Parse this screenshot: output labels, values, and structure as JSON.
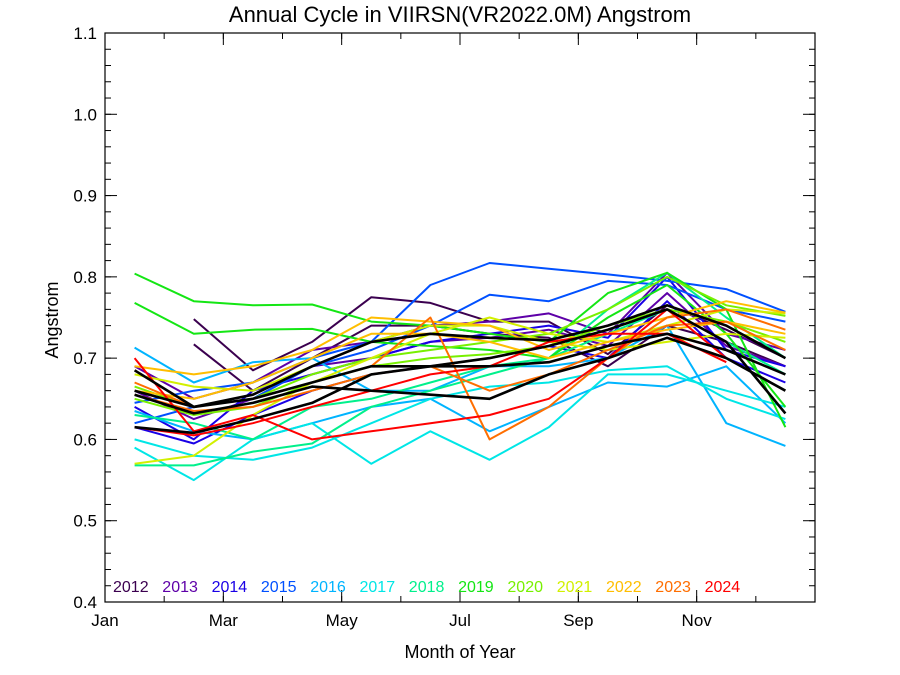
{
  "chart_data": {
    "type": "line",
    "title": "Annual Cycle in VIIRSN(VR2022.0M) Angstrom",
    "xlabel": "Month of Year",
    "ylabel": "Angstrom",
    "xlim": [
      1,
      13
    ],
    "ylim": [
      0.4,
      1.1
    ],
    "x_ticks": [
      {
        "value": 1,
        "label": "Jan"
      },
      {
        "value": 3,
        "label": "Mar"
      },
      {
        "value": 5,
        "label": "May"
      },
      {
        "value": 7,
        "label": "Jul"
      },
      {
        "value": 9,
        "label": "Sep"
      },
      {
        "value": 11,
        "label": "Nov"
      }
    ],
    "y_ticks": [
      {
        "value": 0.4,
        "label": "0.4"
      },
      {
        "value": 0.5,
        "label": "0.5"
      },
      {
        "value": 0.6,
        "label": "0.6"
      },
      {
        "value": 0.7,
        "label": "0.7"
      },
      {
        "value": 0.8,
        "label": "0.8"
      },
      {
        "value": 0.9,
        "label": "0.9"
      },
      {
        "value": 1.0,
        "label": "1.0"
      },
      {
        "value": 1.1,
        "label": "1.1"
      }
    ],
    "legend_placement": "bottom-left inside plot",
    "months": [
      1.5,
      2.5,
      3.5,
      4.5,
      5.5,
      6.5,
      7.5,
      8.5,
      9.5,
      10.5,
      11.5,
      12.5
    ],
    "series": [
      {
        "name": "2012",
        "color": "#3b004f",
        "lines": [
          [
            null,
            0.748,
            0.685,
            0.72,
            0.775,
            0.768,
            0.745,
            0.745,
            0.705,
            0.765,
            0.735,
            0.7
          ],
          [
            null,
            0.717,
            0.66,
            0.7,
            0.74,
            0.74,
            0.73,
            0.725,
            0.69,
            0.74,
            0.72,
            0.69
          ]
        ]
      },
      {
        "name": "2013",
        "color": "#5e00a8",
        "lines": [
          [
            0.69,
            0.65,
            0.67,
            0.71,
            0.72,
            0.74,
            0.745,
            0.755,
            0.73,
            0.805,
            0.73,
            0.71
          ],
          [
            0.66,
            0.625,
            0.65,
            0.69,
            0.7,
            0.72,
            0.725,
            0.735,
            0.715,
            0.78,
            0.715,
            0.69
          ]
        ]
      },
      {
        "name": "2014",
        "color": "#1a00e6",
        "lines": [
          [
            0.64,
            0.6,
            0.66,
            0.68,
            0.7,
            0.72,
            0.73,
            0.74,
            0.725,
            0.8,
            0.71,
            0.69
          ],
          [
            0.615,
            0.595,
            0.63,
            0.66,
            0.68,
            0.69,
            0.7,
            0.715,
            0.7,
            0.77,
            0.7,
            0.67
          ]
        ]
      },
      {
        "name": "2015",
        "color": "#0050ff",
        "lines": [
          [
            0.645,
            0.66,
            0.67,
            0.7,
            0.72,
            0.79,
            0.817,
            0.81,
            0.803,
            0.795,
            0.785,
            0.757
          ],
          [
            0.62,
            0.64,
            0.65,
            0.69,
            0.71,
            0.74,
            0.778,
            0.77,
            0.795,
            0.79,
            0.76,
            0.745
          ]
        ]
      },
      {
        "name": "2016",
        "color": "#00b4ff",
        "lines": [
          [
            0.713,
            0.67,
            0.695,
            0.7,
            0.66,
            0.66,
            0.69,
            0.69,
            0.7,
            0.74,
            0.62,
            0.592
          ],
          [
            0.635,
            0.61,
            0.6,
            0.62,
            0.64,
            0.65,
            0.61,
            0.64,
            0.67,
            0.665,
            0.69,
            0.62
          ]
        ]
      },
      {
        "name": "2017",
        "color": "#00e6e6",
        "lines": [
          [
            0.59,
            0.55,
            0.6,
            0.62,
            0.57,
            0.61,
            0.575,
            0.615,
            0.68,
            0.68,
            0.66,
            0.64
          ],
          [
            0.6,
            0.58,
            0.575,
            0.59,
            0.62,
            0.65,
            0.665,
            0.67,
            0.685,
            0.69,
            0.65,
            0.625
          ]
        ]
      },
      {
        "name": "2018",
        "color": "#00f08c",
        "lines": [
          [
            0.63,
            0.62,
            0.6,
            0.64,
            0.65,
            0.67,
            0.69,
            0.7,
            0.76,
            0.805,
            0.75,
            0.7
          ],
          [
            0.568,
            0.568,
            0.585,
            0.595,
            0.64,
            0.66,
            0.68,
            0.7,
            0.73,
            0.76,
            0.72,
            0.68
          ]
        ]
      },
      {
        "name": "2019",
        "color": "#14e614",
        "lines": [
          [
            0.804,
            0.77,
            0.765,
            0.766,
            0.745,
            0.74,
            0.73,
            0.72,
            0.78,
            0.805,
            0.76,
            0.615
          ],
          [
            0.768,
            0.73,
            0.735,
            0.736,
            0.72,
            0.715,
            0.71,
            0.7,
            0.75,
            0.79,
            0.73,
            0.64
          ]
        ]
      },
      {
        "name": "2020",
        "color": "#78f000",
        "lines": [
          [
            0.665,
            0.64,
            0.65,
            0.68,
            0.7,
            0.71,
            0.72,
            0.73,
            0.76,
            0.8,
            0.765,
            0.752
          ],
          [
            0.65,
            0.63,
            0.64,
            0.67,
            0.69,
            0.7,
            0.705,
            0.715,
            0.74,
            0.76,
            0.745,
            0.72
          ]
        ]
      },
      {
        "name": "2021",
        "color": "#d2f000",
        "lines": [
          [
            0.57,
            0.58,
            0.63,
            0.67,
            0.7,
            0.73,
            0.75,
            0.73,
            0.72,
            0.74,
            0.76,
            0.755
          ],
          [
            0.68,
            0.665,
            0.66,
            0.69,
            0.72,
            0.74,
            0.74,
            0.72,
            0.71,
            0.72,
            0.73,
            0.725
          ]
        ]
      },
      {
        "name": "2022",
        "color": "#ffbe00",
        "lines": [
          [
            0.69,
            0.68,
            0.69,
            0.71,
            0.75,
            0.745,
            0.74,
            0.71,
            0.73,
            0.75,
            0.77,
            0.756
          ],
          [
            0.66,
            0.65,
            0.67,
            0.7,
            0.73,
            0.73,
            0.72,
            0.7,
            0.72,
            0.735,
            0.745,
            0.73
          ]
        ]
      },
      {
        "name": "2023",
        "color": "#ff6e00",
        "lines": [
          [
            0.67,
            0.64,
            0.65,
            0.67,
            0.69,
            0.75,
            0.6,
            0.64,
            0.7,
            0.75,
            0.76,
            0.735
          ],
          [
            0.655,
            0.635,
            0.64,
            0.66,
            0.68,
            0.69,
            0.66,
            0.68,
            0.71,
            0.74,
            0.745,
            0.71
          ]
        ]
      },
      {
        "name": "2024",
        "color": "#ff0000",
        "lines": [
          [
            0.7,
            0.61,
            0.63,
            0.6,
            0.61,
            0.62,
            0.63,
            0.65,
            0.7,
            0.76,
            0.7,
            null
          ],
          [
            0.615,
            0.605,
            0.62,
            0.64,
            0.66,
            0.68,
            0.69,
            0.72,
            0.73,
            0.73,
            0.695,
            null
          ]
        ]
      }
    ],
    "climatology_lines": [
      {
        "color": "#000000",
        "values": [
          0.685,
          0.64,
          0.65,
          0.67,
          0.69,
          0.69,
          0.69,
          0.695,
          0.715,
          0.73,
          0.71,
          0.68
        ]
      },
      {
        "color": "#000000",
        "values": [
          0.655,
          0.632,
          0.645,
          0.665,
          0.66,
          0.655,
          0.65,
          0.68,
          0.7,
          0.725,
          0.7,
          0.66
        ]
      },
      {
        "color": "#000000",
        "values": [
          0.615,
          0.608,
          0.625,
          0.645,
          0.68,
          0.69,
          0.7,
          0.715,
          0.735,
          0.76,
          0.72,
          0.632
        ]
      },
      {
        "color": "#000000",
        "values": [
          0.66,
          0.64,
          0.655,
          0.69,
          0.72,
          0.73,
          0.725,
          0.722,
          0.74,
          0.765,
          0.74,
          0.7
        ]
      }
    ]
  }
}
